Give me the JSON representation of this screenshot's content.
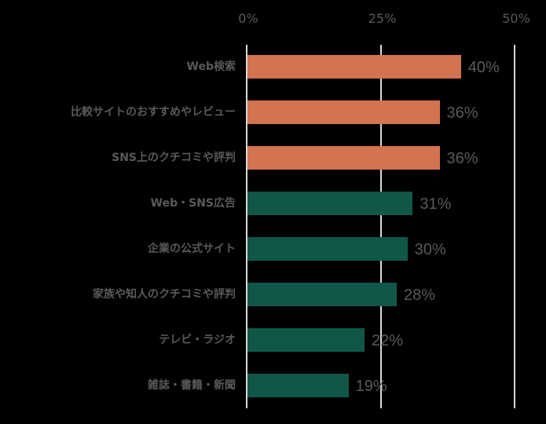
{
  "chart_data": {
    "type": "bar",
    "orientation": "horizontal",
    "title": "",
    "xlabel": "",
    "ylabel": "",
    "xlim": [
      0,
      50
    ],
    "x_ticks": [
      "0%",
      "25%",
      "50%"
    ],
    "grid": true,
    "legend": null,
    "categories": [
      "Web検索",
      "比較サイトのおすすめやレビュー",
      "SNS上のクチコミや評判",
      "Web・SNS広告",
      "企業の公式サイト",
      "家族や知人のクチコミや評判",
      "テレビ・ラジオ",
      "雑誌・書籍・新聞"
    ],
    "values": [
      40,
      36,
      36,
      31,
      30,
      28,
      22,
      19
    ],
    "value_labels": [
      "40%",
      "36%",
      "36%",
      "31%",
      "30%",
      "28%",
      "22%",
      "19%"
    ],
    "bar_colors": [
      "#d3734f",
      "#d3734f",
      "#d3734f",
      "#10574a",
      "#10574a",
      "#10574a",
      "#10574a",
      "#10574a"
    ]
  },
  "colors": {
    "highlight": "#d3734f",
    "base": "#10574a",
    "background": "#000000",
    "text": "#595959",
    "gridline": "#d9d9d9"
  }
}
